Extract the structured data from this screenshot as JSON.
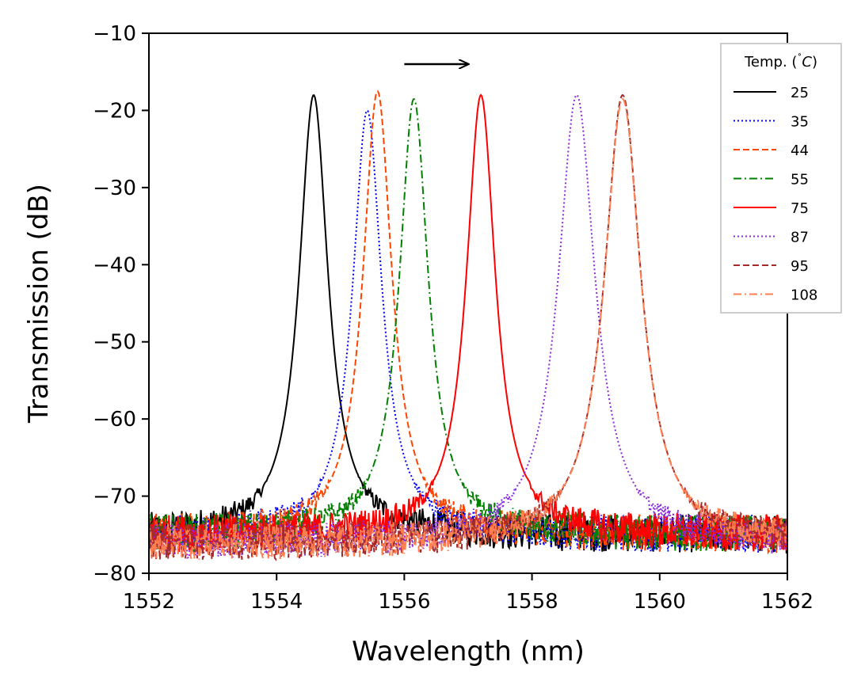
{
  "chart_data": {
    "type": "line",
    "title": "",
    "xlabel": "Wavelength (nm)",
    "ylabel": "Transmission (dB)",
    "xlim": [
      1552,
      1562
    ],
    "ylim": [
      -80,
      -10
    ],
    "xticks": [
      1552,
      1554,
      1556,
      1558,
      1560,
      1562
    ],
    "yticks": [
      -80,
      -70,
      -60,
      -50,
      -40,
      -30,
      -20,
      -10
    ],
    "xtick_labels": [
      "1552",
      "1554",
      "1556",
      "1558",
      "1560",
      "1562"
    ],
    "ytick_labels": [
      "−80",
      "−70",
      "−60",
      "−50",
      "−40",
      "−30",
      "−20",
      "−10"
    ],
    "grid": false,
    "legend": {
      "title": "Temp. (˚C)",
      "title_main": "Temp. (",
      "title_deg": "˚",
      "title_unit": "C",
      "title_close": ")",
      "placement": "top-right"
    },
    "annotation": {
      "type": "arrow",
      "from": [
        1556.0,
        -14
      ],
      "to": [
        1557.0,
        -14
      ],
      "direction": "right"
    },
    "series": [
      {
        "name": "25",
        "color": "#000000",
        "style": "solid",
        "peak_nm": 1554.58,
        "peak_db": -18.0,
        "width_nm": 0.55,
        "baseline_db": -75
      },
      {
        "name": "35",
        "color": "#0000ff",
        "style": "dotted",
        "peak_nm": 1555.42,
        "peak_db": -20.0,
        "width_nm": 0.55,
        "baseline_db": -75
      },
      {
        "name": "44",
        "color": "#ff4500",
        "style": "dashed",
        "peak_nm": 1555.58,
        "peak_db": -17.5,
        "width_nm": 0.55,
        "baseline_db": -75
      },
      {
        "name": "55",
        "color": "#008000",
        "style": "dashdot",
        "peak_nm": 1556.15,
        "peak_db": -18.5,
        "width_nm": 0.55,
        "baseline_db": -75
      },
      {
        "name": "75",
        "color": "#ff0000",
        "style": "solid",
        "peak_nm": 1557.2,
        "peak_db": -18.0,
        "width_nm": 0.55,
        "baseline_db": -75
      },
      {
        "name": "87",
        "color": "#8a2be2",
        "style": "dotted",
        "peak_nm": 1558.7,
        "peak_db": -18.0,
        "width_nm": 0.7,
        "baseline_db": -76
      },
      {
        "name": "95",
        "color": "#a52a2a",
        "style": "dashed",
        "peak_nm": 1559.42,
        "peak_db": -18.0,
        "width_nm": 0.7,
        "baseline_db": -76
      },
      {
        "name": "108",
        "color": "#ff7f50",
        "style": "dashdot",
        "peak_nm": 1559.42,
        "peak_db": -18.5,
        "width_nm": 0.7,
        "baseline_db": -76
      }
    ]
  }
}
